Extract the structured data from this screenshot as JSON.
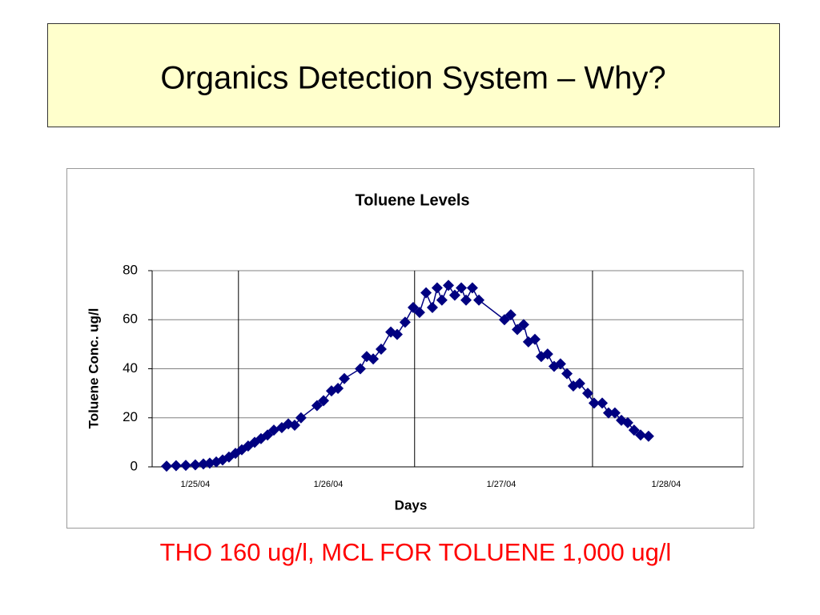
{
  "slide_title": "Organics Detection System – Why?",
  "footnote": "THO 160 ug/l, MCL FOR TOLUENE 1,000 ug/l",
  "chart_data": {
    "type": "line",
    "title": "Toluene Levels",
    "x_label": "Days",
    "y_label": "Toluene Conc. ug/l",
    "xlim": [
      0,
      3.355
    ],
    "xticks": [
      {
        "value": 0.245,
        "label": "1/25/04"
      },
      {
        "value": 1.0,
        "label": "1/26/04"
      },
      {
        "value": 1.982,
        "label": "1/27/04"
      },
      {
        "value": 2.918,
        "label": "1/28/04"
      }
    ],
    "xgrid": [
      0.49,
      1.49,
      2.5
    ],
    "ylim": [
      0,
      80
    ],
    "yticks": [
      0,
      20,
      40,
      60,
      80
    ],
    "grid": true,
    "series": [
      {
        "name": "Toluene",
        "color": "#000080",
        "x": [
          0.082,
          0.136,
          0.191,
          0.245,
          0.291,
          0.327,
          0.364,
          0.4,
          0.436,
          0.473,
          0.509,
          0.545,
          0.582,
          0.618,
          0.655,
          0.691,
          0.736,
          0.773,
          0.809,
          0.845,
          0.936,
          0.973,
          1.018,
          1.055,
          1.091,
          1.182,
          1.218,
          1.255,
          1.3,
          1.355,
          1.391,
          1.436,
          1.482,
          1.518,
          1.555,
          1.591,
          1.618,
          1.645,
          1.682,
          1.718,
          1.755,
          1.782,
          1.818,
          1.855,
          2.0,
          2.036,
          2.073,
          2.109,
          2.136,
          2.173,
          2.209,
          2.245,
          2.282,
          2.318,
          2.355,
          2.391,
          2.427,
          2.473,
          2.509,
          2.555,
          2.591,
          2.627,
          2.664,
          2.7,
          2.736,
          2.773,
          2.818
        ],
        "values": [
          0.3,
          0.5,
          0.6,
          0.8,
          1.2,
          1.5,
          2,
          2.8,
          4,
          5.5,
          7,
          8.5,
          10,
          11.5,
          13,
          15,
          16,
          17.5,
          17,
          20,
          25,
          27,
          31,
          32,
          36,
          40,
          45,
          44,
          48,
          55,
          54,
          59,
          65,
          63,
          71,
          65,
          73,
          68,
          74,
          70,
          73,
          68,
          73,
          68,
          60,
          62,
          56,
          58,
          51,
          52,
          45,
          46,
          41,
          42,
          38,
          33,
          34,
          30,
          26,
          26,
          22,
          22,
          19,
          18,
          15,
          13,
          12.5
        ]
      }
    ]
  }
}
